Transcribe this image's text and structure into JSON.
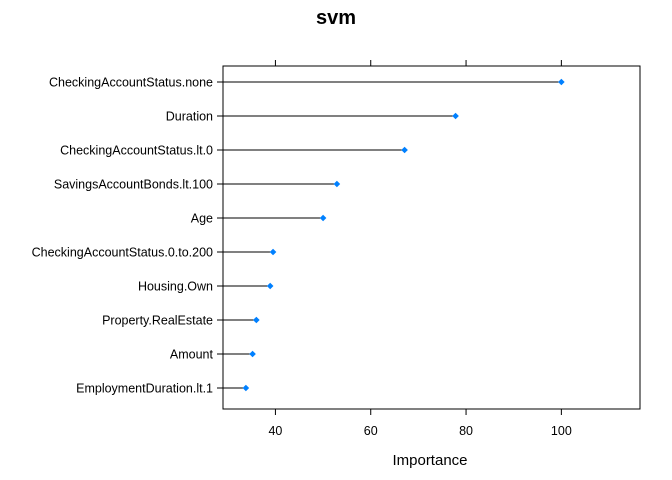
{
  "chart_data": {
    "type": "dot",
    "title": "svm",
    "xlabel": "Importance",
    "ylabel": "",
    "xlim": [
      29,
      116.5
    ],
    "xticks": [
      40,
      60,
      80,
      100
    ],
    "grid": false,
    "legend": "none",
    "point_color": "#0080ff",
    "line_color": "#000000",
    "categories": [
      "CheckingAccountStatus.none",
      "Duration",
      "CheckingAccountStatus.lt.0",
      "SavingsAccountBonds.lt.100",
      "Age",
      "CheckingAccountStatus.0.to.200",
      "Housing.Own",
      "Property.RealEstate",
      "Amount",
      "EmploymentDuration.lt.1"
    ],
    "values": [
      100,
      77.8,
      67.1,
      52.9,
      50.0,
      39.5,
      38.9,
      36.0,
      35.2,
      33.8
    ]
  }
}
